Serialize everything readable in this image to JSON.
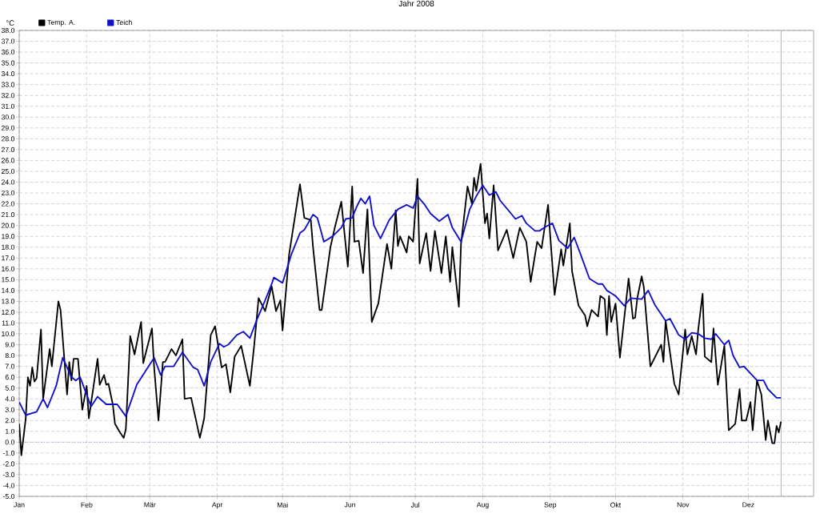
{
  "chart_data": {
    "type": "line",
    "title": "Jahr 2008",
    "ylabel": "°C",
    "xlim": [
      "2008-01-01",
      "2008-12-31"
    ],
    "ylim": [
      -5,
      38
    ],
    "xticks": [
      {
        "value": "2008-01-01",
        "label": "Jan"
      },
      {
        "value": "2008-02-01",
        "label": "Feb"
      },
      {
        "value": "2008-03-01",
        "label": "Mär"
      },
      {
        "value": "2008-04-01",
        "label": "Apr"
      },
      {
        "value": "2008-05-01",
        "label": "Mai"
      },
      {
        "value": "2008-06-01",
        "label": "Jun"
      },
      {
        "value": "2008-07-01",
        "label": "Jul"
      },
      {
        "value": "2008-08-01",
        "label": "Aug"
      },
      {
        "value": "2008-09-01",
        "label": "Sep"
      },
      {
        "value": "2008-10-01",
        "label": "Okt"
      },
      {
        "value": "2008-11-01",
        "label": "Nov"
      },
      {
        "value": "2008-12-01",
        "label": "Dez"
      }
    ],
    "yticks": [
      {
        "value": -5,
        "label": "-5.0"
      },
      {
        "value": -4,
        "label": "-4.0"
      },
      {
        "value": -3,
        "label": "-3.0"
      },
      {
        "value": -2,
        "label": "-2.0"
      },
      {
        "value": -1,
        "label": "-1.0"
      },
      {
        "value": 0,
        "label": "0.0"
      },
      {
        "value": 1,
        "label": "1.0"
      },
      {
        "value": 2,
        "label": "2.0"
      },
      {
        "value": 3,
        "label": "3.0"
      },
      {
        "value": 4,
        "label": "4.0"
      },
      {
        "value": 5,
        "label": "5.0"
      },
      {
        "value": 6,
        "label": "6.0"
      },
      {
        "value": 7,
        "label": "7.0"
      },
      {
        "value": 8,
        "label": "8.0"
      },
      {
        "value": 9,
        "label": "9.0"
      },
      {
        "value": 10,
        "label": "10.0"
      },
      {
        "value": 11,
        "label": "11.0"
      },
      {
        "value": 12,
        "label": "12.0"
      },
      {
        "value": 13,
        "label": "13.0"
      },
      {
        "value": 14,
        "label": "14.0"
      },
      {
        "value": 15,
        "label": "15.0"
      },
      {
        "value": 16,
        "label": "16.0"
      },
      {
        "value": 17,
        "label": "17.0"
      },
      {
        "value": 18,
        "label": "18.0"
      },
      {
        "value": 19,
        "label": "19.0"
      },
      {
        "value": 20,
        "label": "20.0"
      },
      {
        "value": 21,
        "label": "21.0"
      },
      {
        "value": 22,
        "label": "22.0"
      },
      {
        "value": 23,
        "label": "23.0"
      },
      {
        "value": 24,
        "label": "24.0"
      },
      {
        "value": 25,
        "label": "25.0"
      },
      {
        "value": 26,
        "label": "26.0"
      },
      {
        "value": 27,
        "label": "27.0"
      },
      {
        "value": 28,
        "label": "28.0"
      },
      {
        "value": 29,
        "label": "29.0"
      },
      {
        "value": 30,
        "label": "30.0"
      },
      {
        "value": 31,
        "label": "31.0"
      },
      {
        "value": 32,
        "label": "32.0"
      },
      {
        "value": 33,
        "label": "33.0"
      },
      {
        "value": 34,
        "label": "34.0"
      },
      {
        "value": 35,
        "label": "35.0"
      },
      {
        "value": 36,
        "label": "36.0"
      },
      {
        "value": 37,
        "label": "37.0"
      },
      {
        "value": 38,
        "label": "38.0"
      }
    ],
    "grid": true,
    "legend": "top left",
    "ref_lines": [
      {
        "axis": "y",
        "value": 0,
        "color": "#4040d0",
        "line_style": "dotted"
      },
      {
        "axis": "x",
        "value": "2008-12-16",
        "color": "#808080",
        "line_style": "solid"
      }
    ],
    "series": [
      {
        "name": "Temp. A.",
        "color": "#000000",
        "x": [
          "2008-01-01",
          "2008-01-02",
          "2008-01-04",
          "2008-01-05",
          "2008-01-06",
          "2008-01-07",
          "2008-01-08",
          "2008-01-09",
          "2008-01-11",
          "2008-01-12",
          "2008-01-15",
          "2008-01-16",
          "2008-01-19",
          "2008-01-20",
          "2008-01-23",
          "2008-01-24",
          "2008-01-25",
          "2008-01-26",
          "2008-01-28",
          "2008-01-30",
          "2008-02-01",
          "2008-02-02",
          "2008-02-06",
          "2008-02-07",
          "2008-02-09",
          "2008-02-10",
          "2008-02-11",
          "2008-02-13",
          "2008-02-14",
          "2008-02-16",
          "2008-02-18",
          "2008-02-19",
          "2008-02-21",
          "2008-02-23",
          "2008-02-26",
          "2008-02-27",
          "2008-03-02",
          "2008-03-03",
          "2008-03-05",
          "2008-03-07",
          "2008-03-08",
          "2008-03-11",
          "2008-03-13",
          "2008-03-16",
          "2008-03-17",
          "2008-03-20",
          "2008-03-24",
          "2008-03-26",
          "2008-03-29",
          "2008-03-31",
          "2008-04-03",
          "2008-04-05",
          "2008-04-07",
          "2008-04-09",
          "2008-04-12",
          "2008-04-16",
          "2008-04-18",
          "2008-04-20",
          "2008-04-23",
          "2008-04-26",
          "2008-04-28",
          "2008-04-30",
          "2008-05-01",
          "2008-05-04",
          "2008-05-09",
          "2008-05-11",
          "2008-05-14",
          "2008-05-15",
          "2008-05-18",
          "2008-05-19",
          "2008-05-23",
          "2008-05-25",
          "2008-05-28",
          "2008-05-31",
          "2008-06-02",
          "2008-06-03",
          "2008-06-05",
          "2008-06-07",
          "2008-06-09",
          "2008-06-11",
          "2008-06-14",
          "2008-06-18",
          "2008-06-20",
          "2008-06-22",
          "2008-06-23",
          "2008-06-24",
          "2008-06-27",
          "2008-06-28",
          "2008-06-30",
          "2008-07-02",
          "2008-07-03",
          "2008-07-06",
          "2008-07-08",
          "2008-07-10",
          "2008-07-13",
          "2008-07-15",
          "2008-07-17",
          "2008-07-18",
          "2008-07-21",
          "2008-07-22",
          "2008-07-25",
          "2008-07-27",
          "2008-07-28",
          "2008-07-29",
          "2008-07-31",
          "2008-08-02",
          "2008-08-03",
          "2008-08-04",
          "2008-08-06",
          "2008-08-08",
          "2008-08-12",
          "2008-08-15",
          "2008-08-18",
          "2008-08-21",
          "2008-08-23",
          "2008-08-26",
          "2008-08-28",
          "2008-08-31",
          "2008-09-01",
          "2008-09-03",
          "2008-09-06",
          "2008-09-07",
          "2008-09-10",
          "2008-09-11",
          "2008-09-14",
          "2008-09-17",
          "2008-09-18",
          "2008-09-20",
          "2008-09-23",
          "2008-09-24",
          "2008-09-26",
          "2008-09-27",
          "2008-09-28",
          "2008-09-29",
          "2008-10-01",
          "2008-10-03",
          "2008-10-07",
          "2008-10-09",
          "2008-10-10",
          "2008-10-11",
          "2008-10-13",
          "2008-10-14",
          "2008-10-17",
          "2008-10-22",
          "2008-10-23",
          "2008-10-24",
          "2008-10-28",
          "2008-10-30",
          "2008-11-02",
          "2008-11-03",
          "2008-11-05",
          "2008-11-07",
          "2008-11-08",
          "2008-11-10",
          "2008-11-11",
          "2008-11-14",
          "2008-11-15",
          "2008-11-17",
          "2008-11-20",
          "2008-11-22",
          "2008-11-25",
          "2008-11-27",
          "2008-11-28",
          "2008-11-30",
          "2008-12-02",
          "2008-12-03",
          "2008-12-05",
          "2008-12-07",
          "2008-12-09",
          "2008-12-10",
          "2008-12-12",
          "2008-12-13",
          "2008-12-14",
          "2008-12-15",
          "2008-12-16"
        ],
        "values": [
          1.7,
          -1.2,
          2.2,
          6.0,
          5.2,
          6.9,
          5.6,
          5.9,
          10.4,
          4.0,
          8.6,
          7.0,
          13.0,
          12.2,
          4.4,
          7.4,
          5.7,
          7.7,
          7.7,
          3.0,
          5.2,
          2.2,
          7.7,
          5.3,
          6.2,
          5.3,
          5.4,
          3.5,
          1.7,
          1.0,
          0.4,
          1.2,
          9.8,
          8.1,
          11.1,
          7.3,
          10.5,
          6.9,
          2.0,
          7.4,
          7.4,
          8.6,
          8.0,
          9.5,
          4.0,
          4.1,
          0.4,
          2.2,
          9.9,
          10.7,
          6.9,
          7.2,
          4.6,
          7.9,
          8.9,
          5.2,
          9.0,
          13.3,
          12.1,
          14.4,
          12.1,
          13.1,
          10.3,
          17.3,
          23.8,
          20.7,
          20.5,
          18.0,
          12.2,
          12.2,
          18.0,
          19.8,
          22.2,
          16.2,
          23.6,
          18.5,
          18.6,
          15.6,
          21.5,
          11.1,
          12.8,
          18.3,
          16.0,
          21.4,
          18.1,
          19.0,
          17.5,
          19.0,
          18.5,
          24.3,
          16.5,
          19.3,
          15.8,
          19.5,
          15.6,
          19.0,
          14.8,
          18.0,
          12.5,
          18.3,
          23.6,
          22.0,
          24.4,
          23.2,
          25.7,
          20.2,
          21.1,
          18.8,
          23.7,
          17.7,
          19.6,
          17.0,
          19.8,
          18.5,
          14.8,
          18.5,
          17.9,
          21.9,
          19.0,
          13.6,
          17.8,
          16.3,
          20.2,
          15.8,
          12.6,
          11.7,
          10.7,
          12.2,
          11.6,
          13.5,
          13.2,
          9.9,
          13.5,
          11.1,
          12.8,
          7.8,
          15.1,
          11.4,
          11.5,
          13.3,
          15.3,
          14.3,
          7.0,
          9.0,
          7.4,
          11.2,
          5.4,
          4.4,
          10.4,
          8.1,
          9.8,
          8.1,
          10.4,
          13.7,
          7.9,
          7.4,
          10.5,
          5.3,
          8.9,
          1.1,
          1.7,
          4.9,
          2.0,
          2.0,
          3.7,
          1.1,
          5.7,
          4.4,
          0.2,
          2.0,
          -0.1,
          -0.1,
          1.5,
          0.9,
          1.9
        ]
      },
      {
        "name": "Teich",
        "color": "#1010c8",
        "x": [
          "2008-01-01",
          "2008-01-04",
          "2008-01-09",
          "2008-01-12",
          "2008-01-14",
          "2008-01-18",
          "2008-01-21",
          "2008-01-25",
          "2008-01-27",
          "2008-01-29",
          "2008-02-03",
          "2008-02-06",
          "2008-02-10",
          "2008-02-15",
          "2008-02-19",
          "2008-02-24",
          "2008-03-03",
          "2008-03-06",
          "2008-03-08",
          "2008-03-12",
          "2008-03-16",
          "2008-03-21",
          "2008-03-23",
          "2008-03-26",
          "2008-03-29",
          "2008-04-02",
          "2008-04-04",
          "2008-04-06",
          "2008-04-10",
          "2008-04-13",
          "2008-04-16",
          "2008-04-19",
          "2008-04-23",
          "2008-04-26",
          "2008-04-27",
          "2008-05-01",
          "2008-05-05",
          "2008-05-09",
          "2008-05-11",
          "2008-05-15",
          "2008-05-17",
          "2008-05-20",
          "2008-05-24",
          "2008-05-28",
          "2008-05-30",
          "2008-06-02",
          "2008-06-04",
          "2008-06-06",
          "2008-06-08",
          "2008-06-10",
          "2008-06-12",
          "2008-06-15",
          "2008-06-19",
          "2008-06-23",
          "2008-06-27",
          "2008-06-30",
          "2008-07-02",
          "2008-07-05",
          "2008-07-08",
          "2008-07-12",
          "2008-07-16",
          "2008-07-18",
          "2008-07-22",
          "2008-07-26",
          "2008-07-29",
          "2008-08-01",
          "2008-08-04",
          "2008-08-07",
          "2008-08-09",
          "2008-08-14",
          "2008-08-16",
          "2008-08-19",
          "2008-08-21",
          "2008-08-25",
          "2008-08-27",
          "2008-08-30",
          "2008-09-02",
          "2008-09-05",
          "2008-09-09",
          "2008-09-12",
          "2008-09-15",
          "2008-09-19",
          "2008-09-23",
          "2008-09-25",
          "2008-09-27",
          "2008-10-01",
          "2008-10-05",
          "2008-10-08",
          "2008-10-13",
          "2008-10-16",
          "2008-10-19",
          "2008-10-24",
          "2008-10-26",
          "2008-10-30",
          "2008-11-02",
          "2008-11-05",
          "2008-11-08",
          "2008-11-11",
          "2008-11-14",
          "2008-11-16",
          "2008-11-20",
          "2008-11-22",
          "2008-11-24",
          "2008-11-27",
          "2008-11-29",
          "2008-12-05",
          "2008-12-08",
          "2008-12-10",
          "2008-12-14",
          "2008-12-16"
        ],
        "values": [
          3.7,
          2.5,
          2.8,
          4.0,
          3.2,
          5.2,
          7.8,
          6.0,
          5.7,
          6.0,
          3.3,
          4.2,
          3.5,
          3.5,
          2.4,
          5.3,
          7.8,
          6.2,
          7.0,
          7.0,
          8.3,
          6.9,
          6.7,
          5.2,
          7.4,
          9.1,
          8.8,
          9.0,
          9.9,
          10.2,
          9.6,
          11.2,
          13.1,
          14.6,
          15.2,
          14.7,
          17.3,
          19.3,
          19.6,
          21.0,
          20.7,
          18.5,
          19.0,
          19.8,
          20.6,
          20.7,
          21.7,
          22.5,
          22.0,
          22.7,
          20.0,
          18.8,
          20.5,
          21.5,
          21.9,
          21.6,
          22.7,
          22.0,
          21.1,
          20.4,
          21.0,
          19.8,
          18.5,
          21.5,
          22.7,
          23.7,
          22.8,
          23.1,
          22.3,
          21.1,
          20.6,
          20.9,
          20.2,
          19.5,
          19.5,
          19.9,
          20.2,
          18.6,
          17.9,
          18.9,
          17.3,
          15.1,
          14.6,
          14.6,
          14.0,
          13.5,
          12.6,
          13.3,
          13.2,
          14.0,
          12.7,
          11.2,
          11.4,
          9.9,
          9.5,
          10.1,
          10.0,
          9.6,
          9.5,
          10.0,
          9.0,
          9.4,
          8.0,
          6.9,
          7.0,
          5.7,
          5.7,
          4.9,
          4.1,
          4.1
        ]
      }
    ]
  }
}
